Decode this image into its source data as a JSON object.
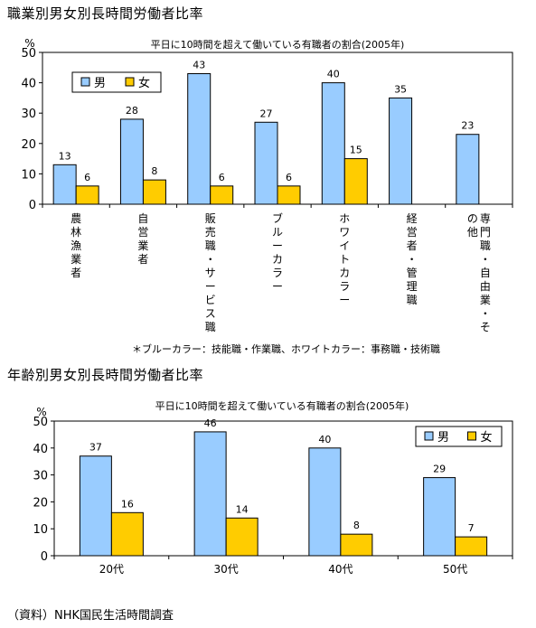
{
  "section1_title": "職業別男女別長時間労働者比率",
  "section2_title": "年齢別男女別長時間労働者比率",
  "footnote": "＊ブルーカラー：技能職・作業職、ホワイトカラー：事務職・技術職",
  "source": "（資料）NHK国民生活時間調査",
  "colors": {
    "male": "#99CCFF",
    "female": "#FFCC00",
    "border": "#000000"
  },
  "chart_data": [
    {
      "type": "bar",
      "title": "平日に10時間を超えて働いている有職者の割合(2005年)",
      "ylabel": "%",
      "ylim": [
        0,
        50
      ],
      "yticks": [
        0,
        10,
        20,
        30,
        40,
        50
      ],
      "grid": false,
      "legend_position": "top-left",
      "categories": [
        "農林漁業者",
        "自営業者",
        "販売職・サービス職",
        "ブルーカラー",
        "ホワイトカラー",
        "経営者・管理職",
        "専門職・自由業・その他"
      ],
      "series": [
        {
          "name": "男",
          "values": [
            13,
            28,
            43,
            27,
            40,
            35,
            23
          ]
        },
        {
          "name": "女",
          "values": [
            6,
            8,
            6,
            6,
            15,
            null,
            null
          ]
        }
      ]
    },
    {
      "type": "bar",
      "title": "平日に10時間を超えて働いている有職者の割合(2005年)",
      "ylabel": "%",
      "ylim": [
        0,
        50
      ],
      "yticks": [
        0,
        10,
        20,
        30,
        40,
        50
      ],
      "grid": false,
      "legend_position": "top-right",
      "categories": [
        "20代",
        "30代",
        "40代",
        "50代"
      ],
      "series": [
        {
          "name": "男",
          "values": [
            37,
            46,
            40,
            29
          ]
        },
        {
          "name": "女",
          "values": [
            16,
            14,
            8,
            7
          ]
        }
      ]
    }
  ]
}
